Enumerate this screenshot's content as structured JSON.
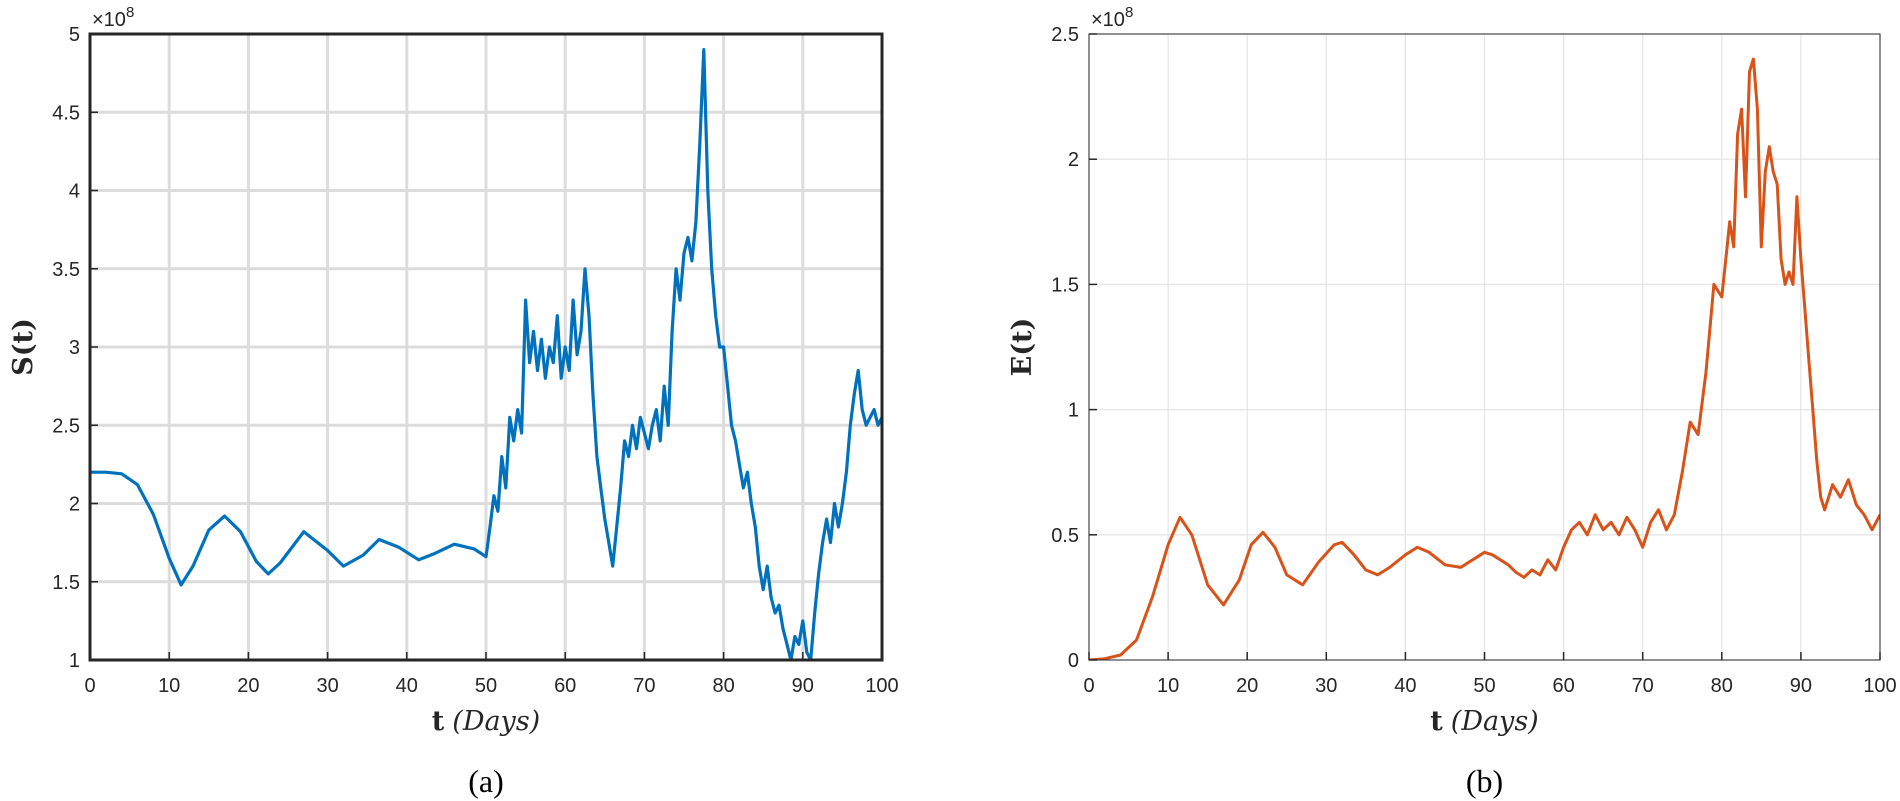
{
  "charts": [
    {
      "caption": "(a)",
      "ylabel": "S(t)",
      "xlabel_main": "t",
      "xlabel_unit": "(Days)",
      "multiplier": "×10",
      "multiplier_exp": "8",
      "color": "#0072bd",
      "xticks": [
        "0",
        "10",
        "20",
        "30",
        "40",
        "50",
        "60",
        "70",
        "80",
        "90",
        "100"
      ],
      "yticks": [
        "1",
        "1.5",
        "2",
        "2.5",
        "3",
        "3.5",
        "4",
        "4.5",
        "5"
      ]
    },
    {
      "caption": "(b)",
      "ylabel": "E(t)",
      "xlabel_main": "t",
      "xlabel_unit": "(Days)",
      "multiplier": "×10",
      "multiplier_exp": "8",
      "color": "#d95319",
      "xticks": [
        "0",
        "10",
        "20",
        "30",
        "40",
        "50",
        "60",
        "70",
        "80",
        "90",
        "100"
      ],
      "yticks": [
        "0",
        "0.5",
        "1",
        "1.5",
        "2",
        "2.5"
      ]
    }
  ],
  "chart_data": [
    {
      "type": "line",
      "title": "",
      "xlabel": "t (Days)",
      "ylabel": "S(t)",
      "y_scale_factor": "1e8",
      "xlim": [
        0,
        100
      ],
      "ylim": [
        1,
        5
      ],
      "grid": true,
      "series": [
        {
          "color": "#0072bd",
          "x": [
            0,
            2,
            4,
            6,
            8,
            10,
            11.5,
            13,
            15,
            17,
            19,
            21,
            22.5,
            24,
            27,
            30,
            32,
            34.5,
            36.5,
            39,
            41.5,
            43.5,
            46,
            48.5,
            50,
            50.5,
            51,
            51.5,
            52,
            52.5,
            53,
            53.5,
            54,
            54.5,
            55,
            55.5,
            56,
            56.5,
            57,
            57.5,
            58,
            58.5,
            59,
            59.5,
            60,
            60.5,
            61,
            61.5,
            62,
            62.5,
            63,
            63.5,
            64,
            64.5,
            65,
            65.5,
            66,
            66.5,
            67,
            67.5,
            68,
            68.5,
            69,
            69.5,
            70,
            70.5,
            71,
            71.5,
            72,
            72.5,
            73,
            73.5,
            74,
            74.5,
            75,
            75.5,
            76,
            76.5,
            77,
            77.5,
            78,
            78.5,
            79,
            79.5,
            80,
            80.5,
            81,
            81.5,
            82,
            82.5,
            83,
            83.5,
            84,
            84.5,
            85,
            85.5,
            86,
            86.5,
            87,
            87.5,
            88,
            88.5,
            89,
            89.5,
            90,
            90.5,
            91,
            91.5,
            92,
            92.5,
            93,
            93.5,
            94,
            94.5,
            95,
            95.5,
            96,
            96.5,
            97,
            97.5,
            98,
            98.5,
            99,
            99.5,
            100
          ],
          "y": [
            2.2,
            2.2,
            2.19,
            2.12,
            1.93,
            1.65,
            1.48,
            1.6,
            1.83,
            1.92,
            1.82,
            1.63,
            1.55,
            1.62,
            1.82,
            1.7,
            1.6,
            1.67,
            1.77,
            1.72,
            1.64,
            1.68,
            1.74,
            1.71,
            1.66,
            1.85,
            2.05,
            1.95,
            2.3,
            2.1,
            2.55,
            2.4,
            2.6,
            2.45,
            3.3,
            2.9,
            3.1,
            2.85,
            3.05,
            2.8,
            3.0,
            2.9,
            3.2,
            2.8,
            3.0,
            2.85,
            3.3,
            2.95,
            3.1,
            3.5,
            3.2,
            2.7,
            2.3,
            2.1,
            1.9,
            1.75,
            1.6,
            1.85,
            2.1,
            2.4,
            2.3,
            2.5,
            2.35,
            2.55,
            2.45,
            2.35,
            2.5,
            2.6,
            2.4,
            2.75,
            2.5,
            3.1,
            3.5,
            3.3,
            3.6,
            3.7,
            3.55,
            3.8,
            4.3,
            4.9,
            4.0,
            3.5,
            3.2,
            3.0,
            3.0,
            2.75,
            2.5,
            2.4,
            2.25,
            2.1,
            2.2,
            2.0,
            1.85,
            1.6,
            1.45,
            1.6,
            1.4,
            1.3,
            1.35,
            1.2,
            1.1,
            1.0,
            1.15,
            1.1,
            1.25,
            1.05,
            1.0,
            1.3,
            1.55,
            1.75,
            1.9,
            1.75,
            2.0,
            1.85,
            2.0,
            2.2,
            2.5,
            2.7,
            2.85,
            2.6,
            2.5,
            2.55,
            2.6,
            2.5,
            2.55
          ]
        }
      ]
    },
    {
      "type": "line",
      "title": "",
      "xlabel": "t (Days)",
      "ylabel": "E(t)",
      "y_scale_factor": "1e8",
      "xlim": [
        0,
        100
      ],
      "ylim": [
        0,
        2.5
      ],
      "grid": true,
      "series": [
        {
          "color": "#d95319",
          "x": [
            0,
            2,
            4,
            6,
            8,
            10,
            11.5,
            13,
            15,
            17,
            19,
            20.5,
            22,
            23.5,
            25,
            27,
            29,
            31,
            32,
            33.5,
            35,
            36.5,
            38,
            40,
            41.5,
            43,
            45,
            47,
            49,
            50,
            51,
            52,
            53,
            54,
            55,
            56,
            57,
            58,
            59,
            60,
            61,
            62,
            63,
            64,
            65,
            66,
            67,
            68,
            69,
            70,
            71,
            72,
            73,
            74,
            75,
            76,
            77,
            78,
            79,
            80,
            80.5,
            81,
            81.5,
            82,
            82.5,
            83,
            83.5,
            84,
            84.5,
            85,
            85.5,
            86,
            86.5,
            87,
            87.5,
            88,
            88.5,
            89,
            89.5,
            90,
            90.5,
            91,
            91.5,
            92,
            92.5,
            93,
            93.5,
            94,
            95,
            96,
            97,
            98,
            99,
            100
          ],
          "y": [
            0.0,
            0.005,
            0.02,
            0.08,
            0.25,
            0.46,
            0.57,
            0.5,
            0.3,
            0.22,
            0.32,
            0.46,
            0.51,
            0.45,
            0.34,
            0.3,
            0.39,
            0.46,
            0.47,
            0.42,
            0.36,
            0.34,
            0.37,
            0.42,
            0.45,
            0.43,
            0.38,
            0.37,
            0.41,
            0.43,
            0.42,
            0.4,
            0.38,
            0.35,
            0.33,
            0.36,
            0.34,
            0.4,
            0.36,
            0.45,
            0.52,
            0.55,
            0.5,
            0.58,
            0.52,
            0.55,
            0.5,
            0.57,
            0.52,
            0.45,
            0.55,
            0.6,
            0.52,
            0.58,
            0.75,
            0.95,
            0.9,
            1.15,
            1.5,
            1.45,
            1.6,
            1.75,
            1.65,
            2.1,
            2.2,
            1.85,
            2.35,
            2.4,
            2.2,
            1.65,
            1.95,
            2.05,
            1.95,
            1.9,
            1.6,
            1.5,
            1.55,
            1.5,
            1.85,
            1.6,
            1.4,
            1.2,
            1.0,
            0.8,
            0.65,
            0.6,
            0.65,
            0.7,
            0.65,
            0.72,
            0.62,
            0.58,
            0.52,
            0.58
          ]
        }
      ]
    }
  ]
}
